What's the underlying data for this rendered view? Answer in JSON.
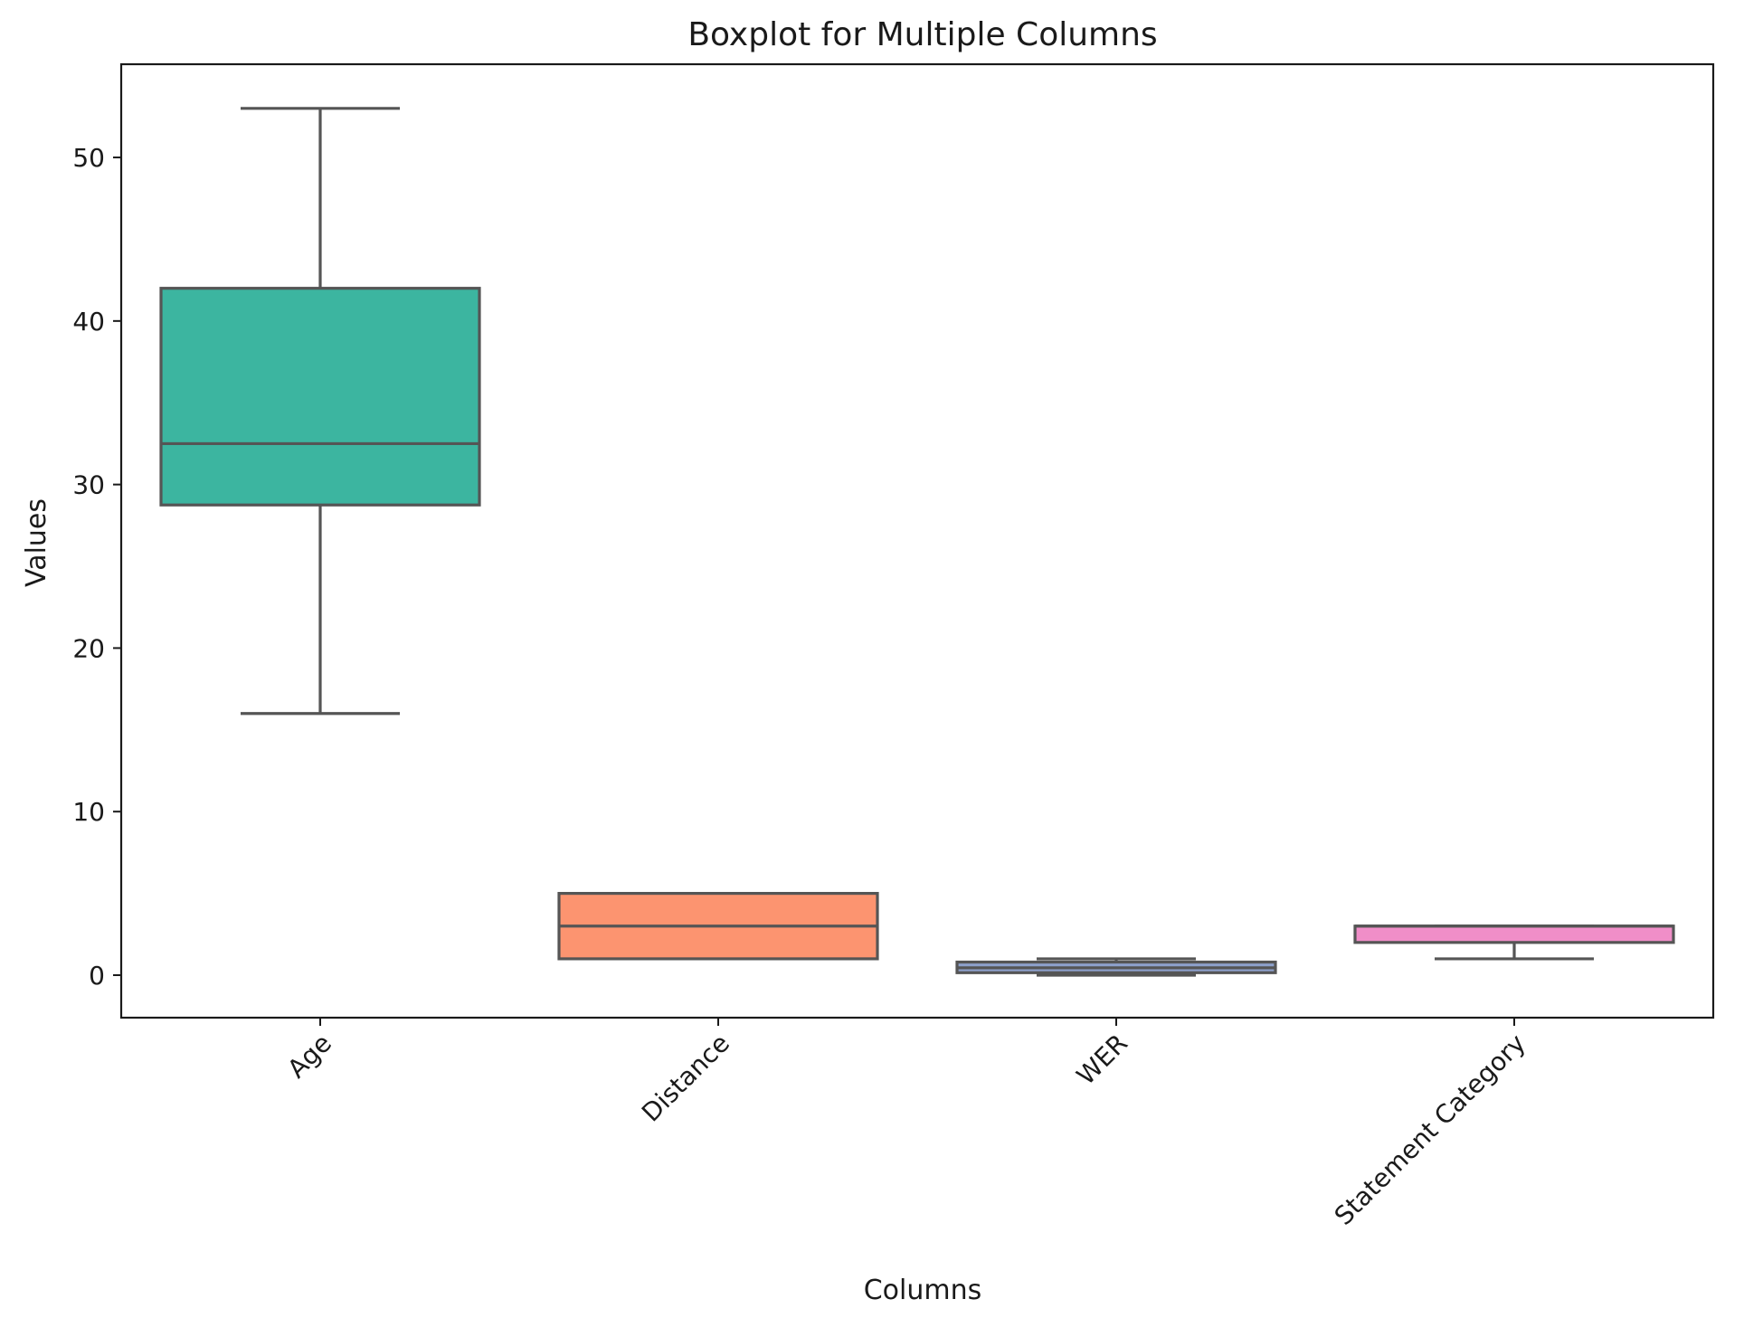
{
  "chart_data": {
    "type": "boxplot",
    "title": "Boxplot for Multiple Columns",
    "xlabel": "Columns",
    "ylabel": "Values",
    "ylim": [
      -2.6,
      55.7
    ],
    "yticks": [
      0,
      10,
      20,
      30,
      40,
      50
    ],
    "grid": false,
    "legend": "none",
    "categories": [
      "Age",
      "Distance",
      "WER",
      "Statement Category"
    ],
    "series": [
      {
        "category": "Age",
        "whisker_low": 16,
        "q1": 28.75,
        "median": 32.5,
        "q3": 42,
        "whisker_high": 53,
        "color": "#3cb5a0"
      },
      {
        "category": "Distance",
        "whisker_low": 1,
        "q1": 1,
        "median": 3,
        "q3": 5,
        "whisker_high": 5,
        "color": "#fc9470"
      },
      {
        "category": "WER",
        "whisker_low": 0,
        "q1": 0.15,
        "median": 0.45,
        "q3": 0.8,
        "whisker_high": 1.0,
        "color": "#8da0cb"
      },
      {
        "category": "Statement Category",
        "whisker_low": 1,
        "q1": 2,
        "median": 3,
        "q3": 3,
        "whisker_high": 3,
        "color": "#f08ec8"
      }
    ]
  }
}
